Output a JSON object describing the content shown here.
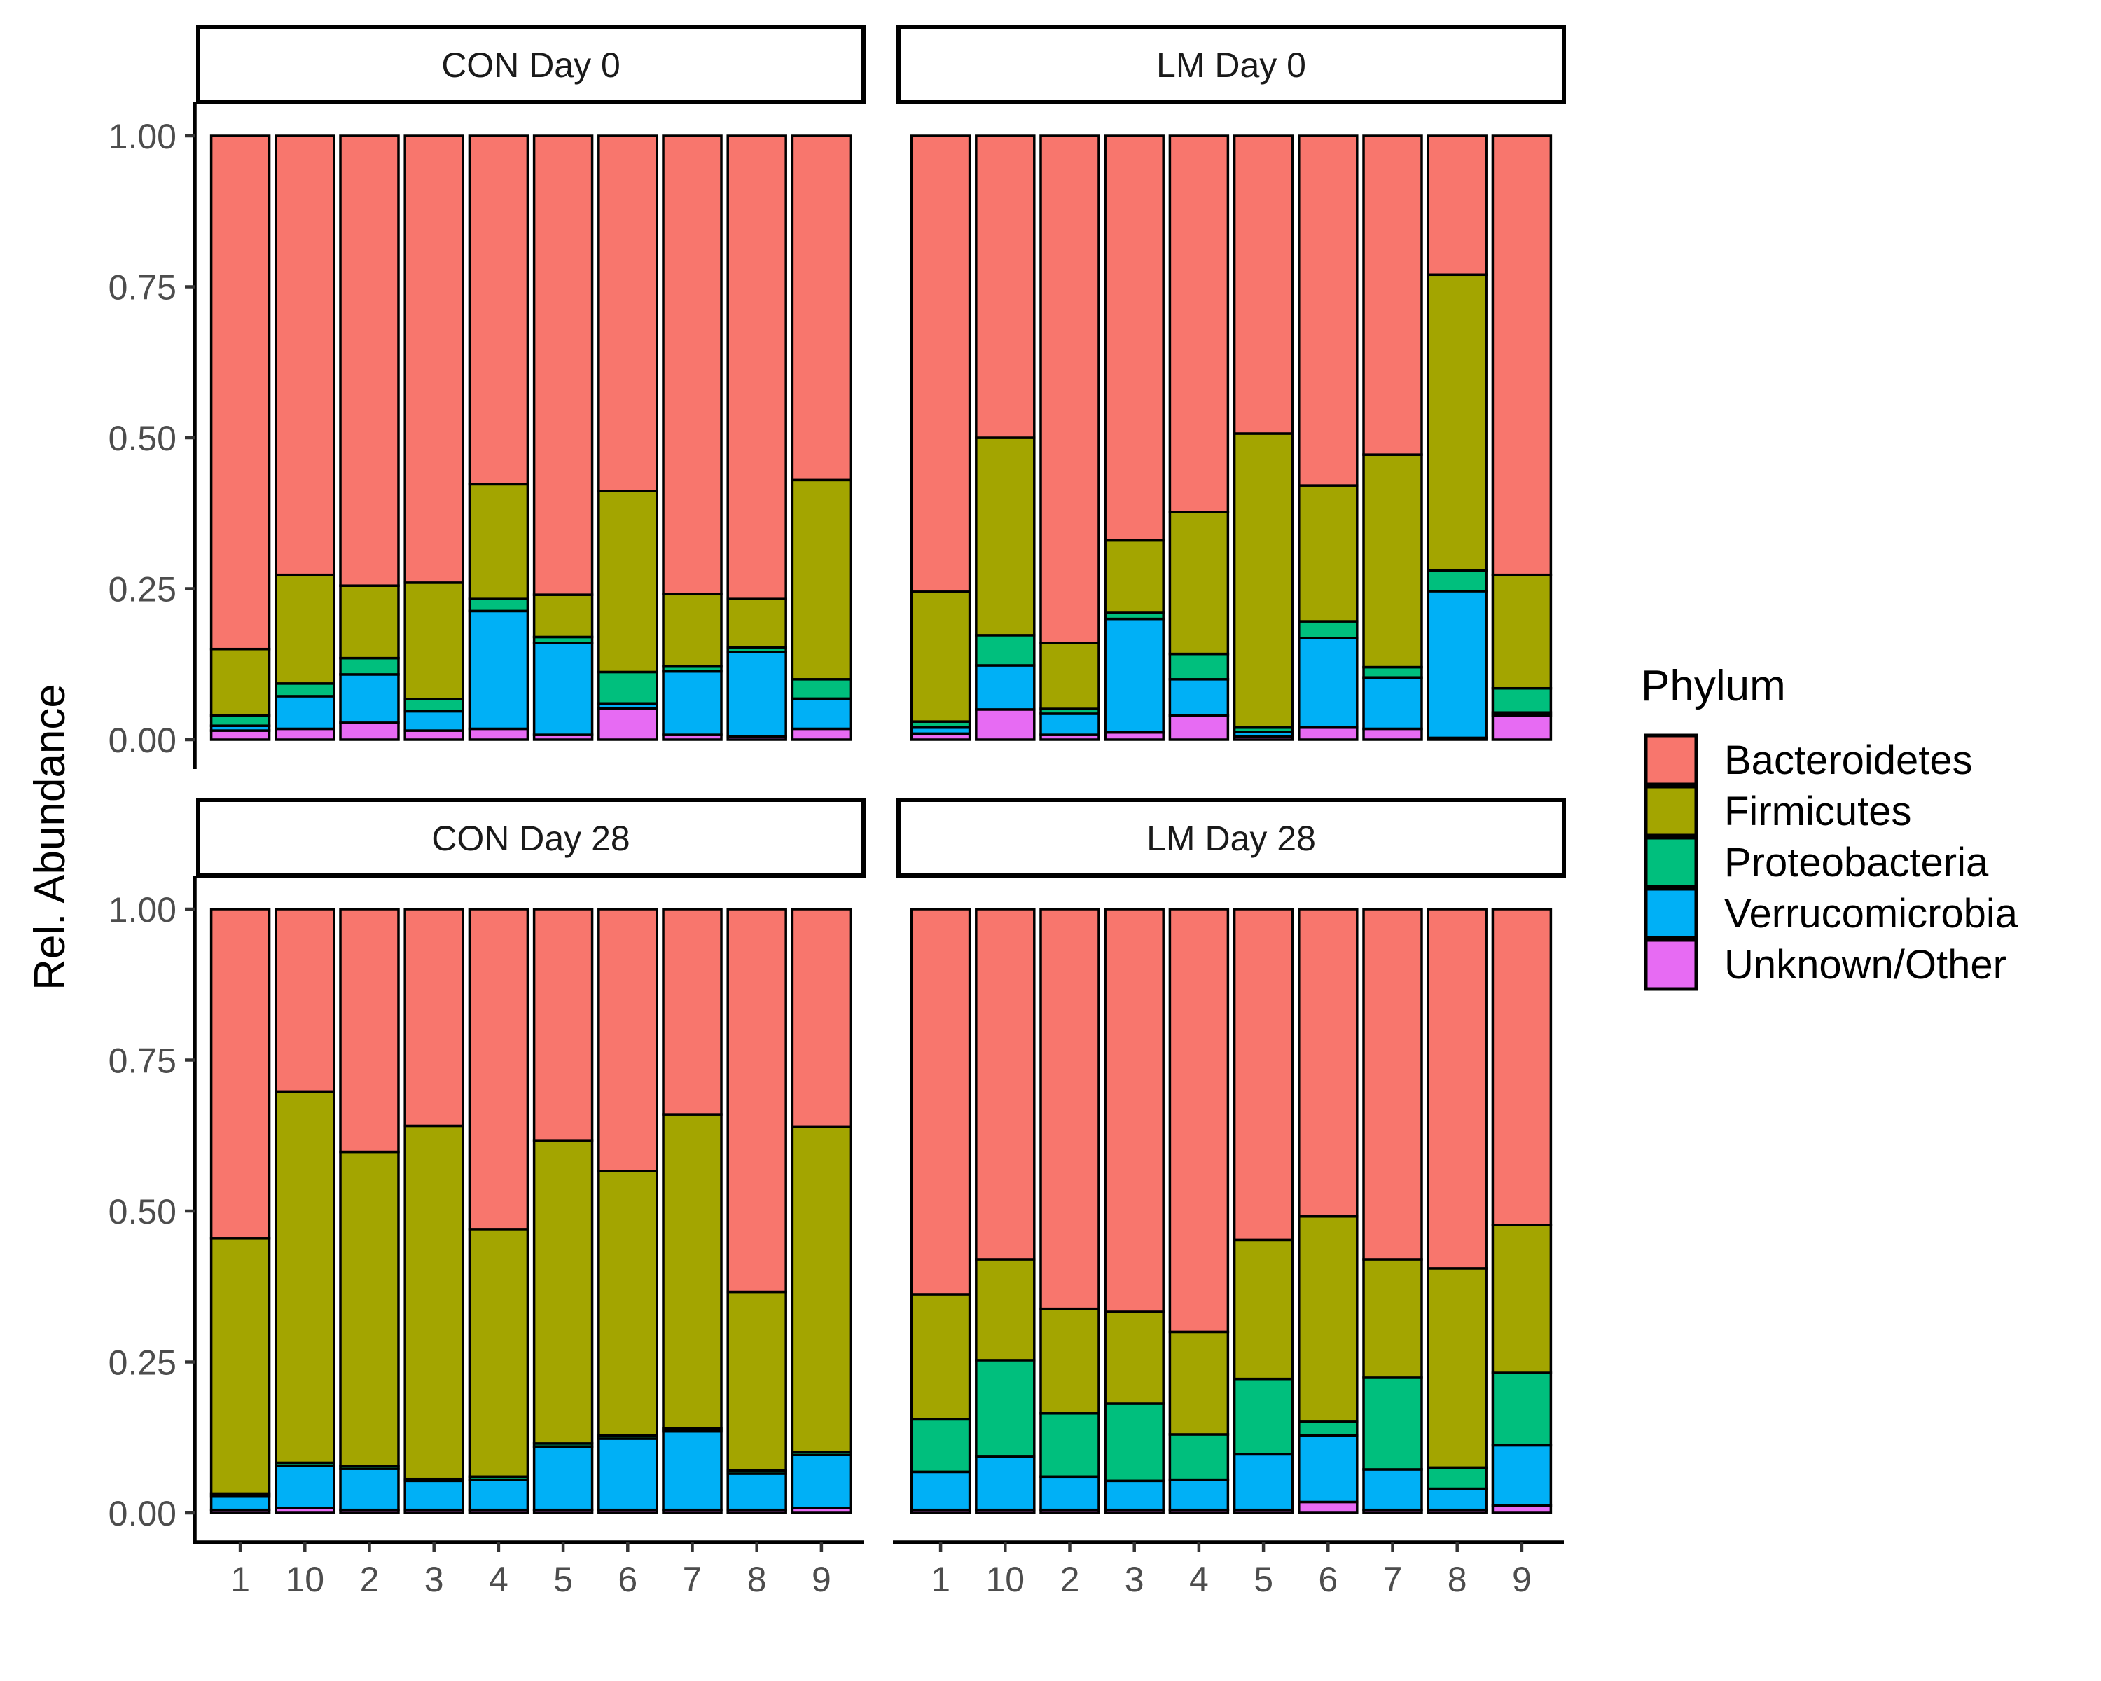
{
  "chart_data": {
    "type": "bar",
    "stacked": true,
    "ylabel": "Rel. Abundance",
    "ylim": [
      0,
      1
    ],
    "yticks": [
      "0.00",
      "0.25",
      "0.50",
      "0.75",
      "1.00"
    ],
    "categories": [
      "1",
      "10",
      "2",
      "3",
      "4",
      "5",
      "6",
      "7",
      "8",
      "9"
    ],
    "legend": {
      "title": "Phylum",
      "position": "right",
      "items": [
        {
          "name": "Bacteroidetes",
          "color": "#F8766D"
        },
        {
          "name": "Firmicutes",
          "color": "#A3A500"
        },
        {
          "name": "Proteobacteria",
          "color": "#00BF7D"
        },
        {
          "name": "Verrucomicrobia",
          "color": "#00B0F6"
        },
        {
          "name": "Unknown/Other",
          "color": "#E76BF3"
        }
      ]
    },
    "stack_order_bottom_to_top": [
      "Unknown/Other",
      "Verrucomicrobia",
      "Proteobacteria",
      "Firmicutes",
      "Bacteroidetes"
    ],
    "panels": [
      {
        "title": "CON Day 0",
        "series": [
          {
            "name": "Unknown/Other",
            "values": [
              0.015,
              0.018,
              0.028,
              0.015,
              0.018,
              0.008,
              0.052,
              0.008,
              0.005,
              0.018
            ]
          },
          {
            "name": "Verrucomicrobia",
            "values": [
              0.008,
              0.054,
              0.08,
              0.032,
              0.195,
              0.152,
              0.008,
              0.105,
              0.14,
              0.05
            ]
          },
          {
            "name": "Proteobacteria",
            "values": [
              0.017,
              0.021,
              0.027,
              0.02,
              0.02,
              0.01,
              0.052,
              0.008,
              0.008,
              0.032
            ]
          },
          {
            "name": "Firmicutes",
            "values": [
              0.11,
              0.18,
              0.12,
              0.193,
              0.19,
              0.07,
              0.3,
              0.12,
              0.08,
              0.33
            ]
          },
          {
            "name": "Bacteroidetes",
            "values": [
              0.85,
              0.727,
              0.745,
              0.74,
              0.577,
              0.76,
              0.588,
              0.759,
              0.767,
              0.57
            ]
          }
        ]
      },
      {
        "title": "LM Day 0",
        "series": [
          {
            "name": "Unknown/Other",
            "values": [
              0.01,
              0.05,
              0.008,
              0.012,
              0.04,
              0.005,
              0.02,
              0.018,
              0.003,
              0.04
            ]
          },
          {
            "name": "Verrucomicrobia",
            "values": [
              0.01,
              0.073,
              0.035,
              0.188,
              0.06,
              0.008,
              0.148,
              0.085,
              0.243,
              0.005
            ]
          },
          {
            "name": "Proteobacteria",
            "values": [
              0.01,
              0.05,
              0.008,
              0.01,
              0.042,
              0.007,
              0.028,
              0.017,
              0.034,
              0.04
            ]
          },
          {
            "name": "Firmicutes",
            "values": [
              0.215,
              0.327,
              0.109,
              0.12,
              0.235,
              0.487,
              0.225,
              0.352,
              0.49,
              0.188
            ]
          },
          {
            "name": "Bacteroidetes",
            "values": [
              0.755,
              0.5,
              0.84,
              0.67,
              0.623,
              0.493,
              0.579,
              0.528,
              0.23,
              0.727
            ]
          }
        ]
      },
      {
        "title": "CON Day 28",
        "series": [
          {
            "name": "Unknown/Other",
            "values": [
              0.005,
              0.008,
              0.005,
              0.005,
              0.005,
              0.005,
              0.005,
              0.005,
              0.005,
              0.008
            ]
          },
          {
            "name": "Verrucomicrobia",
            "values": [
              0.022,
              0.07,
              0.068,
              0.048,
              0.05,
              0.105,
              0.118,
              0.13,
              0.06,
              0.088
            ]
          },
          {
            "name": "Proteobacteria",
            "values": [
              0.005,
              0.005,
              0.005,
              0.003,
              0.005,
              0.005,
              0.005,
              0.005,
              0.005,
              0.005
            ]
          },
          {
            "name": "Firmicutes",
            "values": [
              0.423,
              0.615,
              0.52,
              0.585,
              0.41,
              0.502,
              0.438,
              0.52,
              0.296,
              0.539
            ]
          },
          {
            "name": "Bacteroidetes",
            "values": [
              0.545,
              0.302,
              0.402,
              0.359,
              0.53,
              0.383,
              0.434,
              0.34,
              0.634,
              0.36
            ]
          }
        ]
      },
      {
        "title": "LM Day 28",
        "series": [
          {
            "name": "Unknown/Other",
            "values": [
              0.005,
              0.005,
              0.005,
              0.005,
              0.005,
              0.005,
              0.018,
              0.005,
              0.005,
              0.012
            ]
          },
          {
            "name": "Verrucomicrobia",
            "values": [
              0.063,
              0.088,
              0.055,
              0.048,
              0.05,
              0.092,
              0.11,
              0.067,
              0.035,
              0.1
            ]
          },
          {
            "name": "Proteobacteria",
            "values": [
              0.087,
              0.16,
              0.105,
              0.128,
              0.075,
              0.125,
              0.023,
              0.152,
              0.035,
              0.12
            ]
          },
          {
            "name": "Firmicutes",
            "values": [
              0.207,
              0.167,
              0.173,
              0.152,
              0.17,
              0.23,
              0.34,
              0.196,
              0.33,
              0.245
            ]
          },
          {
            "name": "Bacteroidetes",
            "values": [
              0.638,
              0.58,
              0.662,
              0.667,
              0.7,
              0.548,
              0.509,
              0.58,
              0.595,
              0.523
            ]
          }
        ]
      }
    ]
  }
}
